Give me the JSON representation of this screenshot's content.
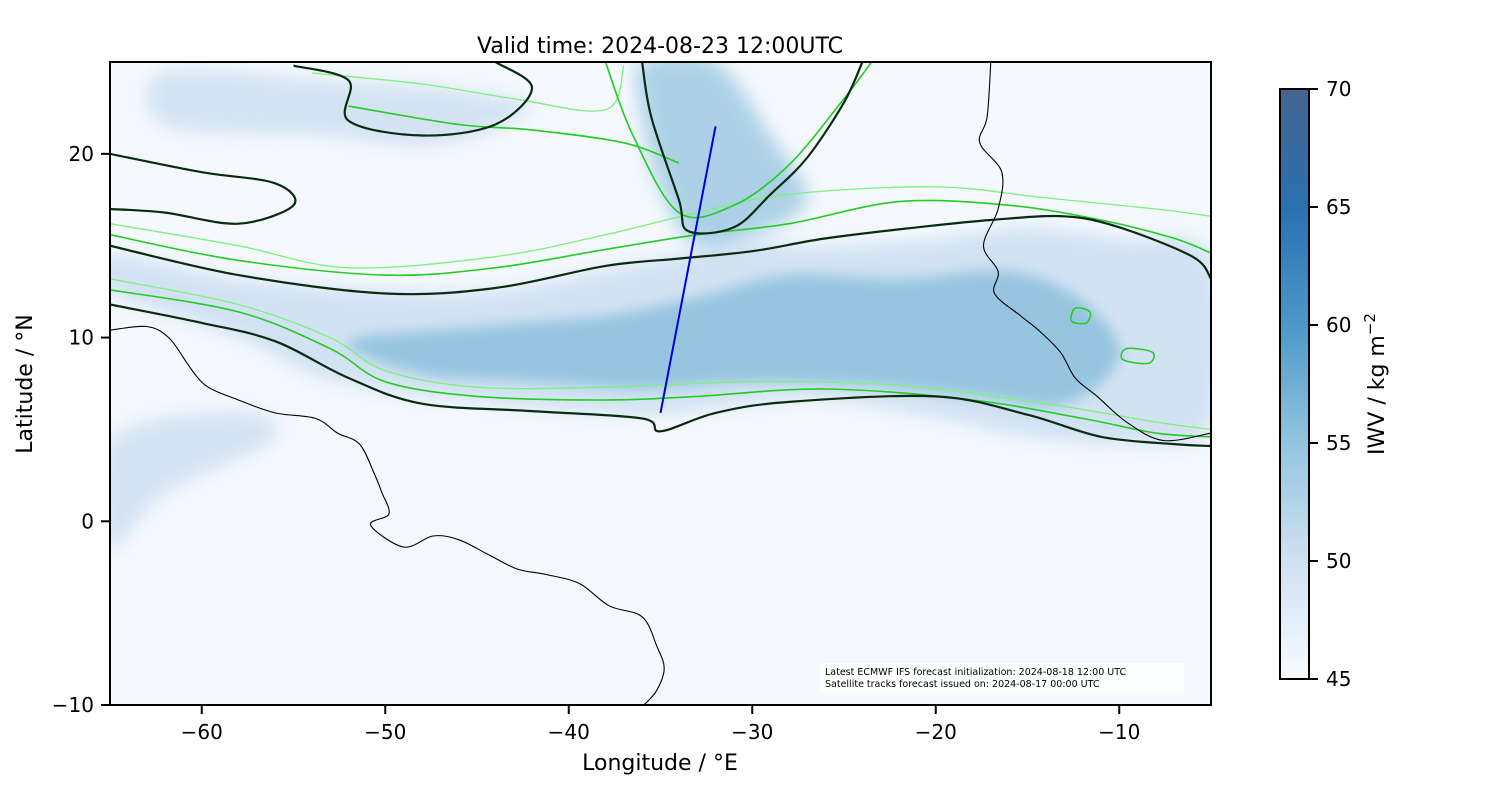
{
  "title": "Valid time: 2024-08-23 12:00UTC",
  "xaxis": {
    "label": "Longitude / °E",
    "range": [
      -65,
      -5
    ],
    "ticks": [
      -60,
      -50,
      -40,
      -30,
      -20,
      -10
    ],
    "tick_labels": [
      "−60",
      "−50",
      "−40",
      "−30",
      "−20",
      "−10"
    ]
  },
  "yaxis": {
    "label": "Latitude / °N",
    "range": [
      -10,
      25
    ],
    "ticks": [
      -10,
      0,
      10,
      20
    ],
    "tick_labels": [
      "−10",
      "0",
      "10",
      "20"
    ]
  },
  "colorbar": {
    "label": "IWV / kg m",
    "label_exponent": "−2",
    "range": [
      45,
      70
    ],
    "ticks": [
      45,
      50,
      55,
      60,
      65,
      70
    ],
    "tick_labels": [
      "45",
      "50",
      "55",
      "60",
      "65",
      "70"
    ],
    "colors": [
      "#f7fbff",
      "#d0e1f2",
      "#94c4df",
      "#4b98c9",
      "#2a70b0",
      "#45658f"
    ]
  },
  "annotation": {
    "line1": "Latest ECMWF IFS forecast initialization: 2024-08-18 12:00 UTC",
    "line2": "Satellite tracks forecast issued on: 2024-08-17 00:00 UTC"
  },
  "satellite_track": {
    "color": "#0000dd",
    "points": [
      [
        -35.0,
        5.9
      ],
      [
        -32.0,
        21.5
      ]
    ]
  },
  "colors": {
    "contour_dark": "#0b2a12",
    "contour_green": "#22cc22",
    "contour_light_green": "#7fef7f",
    "coastline": "#000000"
  },
  "moisture_band": [
    [
      -65,
      14.5
    ],
    [
      -58,
      13.2
    ],
    [
      -50,
      12.6
    ],
    [
      -44,
      12.6
    ],
    [
      -38,
      13.7
    ],
    [
      -34,
      14.5
    ],
    [
      -30,
      15.2
    ],
    [
      -26,
      15.0
    ],
    [
      -20,
      15.4
    ],
    [
      -15,
      16.0
    ],
    [
      -10,
      15.4
    ],
    [
      -5,
      14.5
    ],
    [
      -5,
      5.2
    ],
    [
      -10,
      4.2
    ],
    [
      -15,
      4.6
    ],
    [
      -20,
      5.6
    ],
    [
      -26,
      6.6
    ],
    [
      -30,
      6.4
    ],
    [
      -35,
      5.8
    ],
    [
      -40,
      6.0
    ],
    [
      -45,
      6.5
    ],
    [
      -50,
      7.1
    ],
    [
      -54,
      8.0
    ],
    [
      -58,
      10.0
    ],
    [
      -65,
      12.5
    ]
  ],
  "moisture_core": [
    [
      -52,
      9.8
    ],
    [
      -45,
      10.6
    ],
    [
      -38,
      11.2
    ],
    [
      -33,
      12.2
    ],
    [
      -28,
      13.4
    ],
    [
      -22,
      13.2
    ],
    [
      -16,
      13.6
    ],
    [
      -12,
      12.0
    ],
    [
      -10,
      9.0
    ],
    [
      -13,
      6.4
    ],
    [
      -18,
      6.8
    ],
    [
      -24,
      7.4
    ],
    [
      -30,
      7.6
    ],
    [
      -36,
      7.2
    ],
    [
      -42,
      7.6
    ],
    [
      -48,
      8.0
    ]
  ],
  "moisture_north": [
    [
      -36,
      25
    ],
    [
      -32,
      25
    ],
    [
      -29,
      21
    ],
    [
      -27,
      17.5
    ],
    [
      -30,
      15.5
    ],
    [
      -33,
      15
    ],
    [
      -35,
      18
    ],
    [
      -36,
      22
    ]
  ],
  "moisture_nw": [
    [
      -62,
      24.5
    ],
    [
      -53,
      24
    ],
    [
      -46,
      23.5
    ],
    [
      -42,
      22.5
    ],
    [
      -47,
      20.5
    ],
    [
      -54,
      21
    ],
    [
      -62,
      21.5
    ]
  ],
  "moisture_sw": [
    [
      -65,
      4.5
    ],
    [
      -58,
      6.0
    ],
    [
      -56,
      4.5
    ],
    [
      -62,
      1.5
    ],
    [
      -65,
      -1.5
    ]
  ],
  "contour_dark": [
    [
      [
        -65,
        15.0
      ],
      [
        -58,
        13.4
      ],
      [
        -50,
        12.4
      ],
      [
        -44,
        12.7
      ],
      [
        -38,
        13.9
      ],
      [
        -34,
        14.3
      ],
      [
        -30,
        14.7
      ],
      [
        -26,
        15.4
      ],
      [
        -21,
        16.0
      ],
      [
        -17,
        16.4
      ],
      [
        -13,
        16.6
      ],
      [
        -10,
        16.0
      ],
      [
        -6,
        14.4
      ],
      [
        -5,
        13.2
      ]
    ],
    [
      [
        -65,
        11.8
      ],
      [
        -60,
        10.8
      ],
      [
        -56,
        9.8
      ],
      [
        -52,
        7.8
      ],
      [
        -48,
        6.4
      ],
      [
        -42,
        6.0
      ],
      [
        -36,
        5.6
      ],
      [
        -35,
        4.9
      ],
      [
        -32,
        5.9
      ],
      [
        -28,
        6.5
      ],
      [
        -20,
        6.8
      ],
      [
        -15,
        5.8
      ],
      [
        -11,
        4.6
      ],
      [
        -7,
        4.2
      ],
      [
        -5,
        4.1
      ]
    ],
    [
      [
        -36,
        25
      ],
      [
        -35.5,
        22
      ],
      [
        -34,
        17.5
      ],
      [
        -33.5,
        15.8
      ],
      [
        -31,
        16.0
      ],
      [
        -29,
        17.8
      ],
      [
        -27,
        19.8
      ],
      [
        -25,
        22.8
      ],
      [
        -24,
        25
      ]
    ],
    [
      [
        -65,
        20.0
      ],
      [
        -60,
        19.0
      ],
      [
        -56,
        18.4
      ],
      [
        -55,
        17.2
      ],
      [
        -58,
        16.2
      ],
      [
        -62,
        16.8
      ],
      [
        -65,
        17.0
      ]
    ],
    [
      [
        -55,
        24.8
      ],
      [
        -52,
        24.0
      ],
      [
        -52,
        21.8
      ],
      [
        -48,
        21.0
      ],
      [
        -44,
        21.6
      ],
      [
        -42,
        23.6
      ],
      [
        -44,
        25
      ]
    ]
  ],
  "contour_green": [
    [
      [
        -65,
        15.6
      ],
      [
        -58,
        14.2
      ],
      [
        -50,
        13.4
      ],
      [
        -44,
        13.8
      ],
      [
        -38,
        14.8
      ],
      [
        -33,
        15.6
      ],
      [
        -28,
        16.2
      ],
      [
        -22,
        17.4
      ],
      [
        -16,
        17.2
      ],
      [
        -11,
        16.4
      ],
      [
        -7,
        15.4
      ],
      [
        -5,
        14.6
      ]
    ],
    [
      [
        -65,
        12.6
      ],
      [
        -58,
        11.4
      ],
      [
        -53,
        9.4
      ],
      [
        -50,
        7.6
      ],
      [
        -45,
        6.8
      ],
      [
        -38,
        6.6
      ],
      [
        -33,
        6.8
      ],
      [
        -26,
        7.2
      ],
      [
        -18,
        6.6
      ],
      [
        -12,
        5.6
      ],
      [
        -8,
        4.8
      ],
      [
        -5,
        4.6
      ]
    ],
    [
      [
        -38,
        25
      ],
      [
        -36.5,
        21
      ],
      [
        -34,
        16.8
      ],
      [
        -31,
        17.2
      ],
      [
        -28,
        19.4
      ],
      [
        -25,
        23.0
      ],
      [
        -23.5,
        25
      ]
    ],
    [
      [
        -52,
        22.6
      ],
      [
        -46,
        21.6
      ],
      [
        -42,
        21.3
      ],
      [
        -37,
        20.6
      ],
      [
        -34,
        19.5
      ]
    ]
  ],
  "contour_light": [
    [
      [
        -65,
        16.2
      ],
      [
        -58,
        15.0
      ],
      [
        -52,
        13.8
      ],
      [
        -44,
        14.4
      ],
      [
        -38,
        15.6
      ],
      [
        -33,
        16.8
      ],
      [
        -28,
        17.8
      ],
      [
        -20,
        18.2
      ],
      [
        -14,
        17.6
      ],
      [
        -8,
        17.0
      ],
      [
        -5,
        16.6
      ]
    ],
    [
      [
        -65,
        13.2
      ],
      [
        -58,
        11.8
      ],
      [
        -53,
        10.0
      ],
      [
        -50,
        8.2
      ],
      [
        -45,
        7.3
      ],
      [
        -38,
        7.3
      ],
      [
        -30,
        7.6
      ],
      [
        -22,
        7.4
      ],
      [
        -14,
        6.4
      ],
      [
        -8,
        5.4
      ],
      [
        -5,
        5.0
      ]
    ],
    [
      [
        -54,
        24.4
      ],
      [
        -48,
        23.8
      ],
      [
        -43,
        23.0
      ],
      [
        -38,
        22.4
      ],
      [
        -37,
        24.8
      ]
    ]
  ],
  "island_contours": [
    [
      [
        -12.4,
        11.6
      ],
      [
        -11.6,
        11.4
      ],
      [
        -11.8,
        10.8
      ],
      [
        -12.6,
        10.9
      ]
    ],
    [
      [
        -9.6,
        9.4
      ],
      [
        -8.2,
        9.2
      ],
      [
        -8.4,
        8.6
      ],
      [
        -9.8,
        8.8
      ]
    ]
  ],
  "coastline_africa": [
    [
      -17.0,
      25
    ],
    [
      -17.2,
      22.0
    ],
    [
      -17.6,
      20.6
    ],
    [
      -16.4,
      19.0
    ],
    [
      -16.6,
      17.0
    ],
    [
      -17.4,
      15.0
    ],
    [
      -16.6,
      13.6
    ],
    [
      -16.8,
      12.4
    ],
    [
      -15.4,
      11.2
    ],
    [
      -14.4,
      10.4
    ],
    [
      -13.2,
      9.2
    ],
    [
      -12.4,
      7.8
    ],
    [
      -11.2,
      6.8
    ],
    [
      -9.6,
      5.4
    ],
    [
      -7.6,
      4.4
    ],
    [
      -5,
      4.8
    ]
  ],
  "coastline_samerica": [
    [
      -60.8,
      8.6
    ],
    [
      -59.8,
      7.4
    ],
    [
      -58.0,
      6.6
    ],
    [
      -56.0,
      5.9
    ],
    [
      -53.8,
      5.6
    ],
    [
      -52.6,
      4.8
    ],
    [
      -51.4,
      4.2
    ],
    [
      -50.6,
      2.6
    ],
    [
      -50.2,
      1.6
    ],
    [
      -49.8,
      0.4
    ],
    [
      -50.8,
      -0.2
    ],
    [
      -49.0,
      -1.4
    ],
    [
      -47.4,
      -0.8
    ],
    [
      -46.0,
      -1.0
    ],
    [
      -44.4,
      -1.8
    ],
    [
      -42.8,
      -2.6
    ],
    [
      -41.2,
      -2.9
    ],
    [
      -39.4,
      -3.4
    ],
    [
      -37.8,
      -4.6
    ],
    [
      -36.0,
      -5.2
    ],
    [
      -35.2,
      -6.8
    ],
    [
      -34.8,
      -8.0
    ],
    [
      -35.2,
      -9.2
    ],
    [
      -35.9,
      -10
    ]
  ],
  "coastline_caribbean": [
    [
      -65,
      10.4
    ],
    [
      -63.0,
      10.6
    ],
    [
      -61.8,
      10.0
    ],
    [
      -60.8,
      8.6
    ]
  ]
}
